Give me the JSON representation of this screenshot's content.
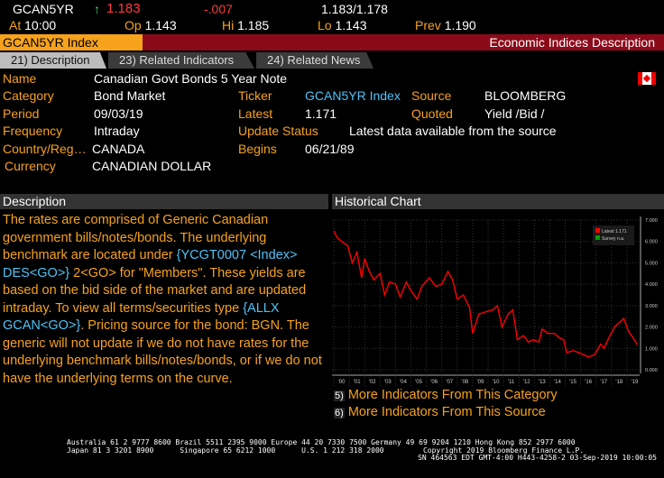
{
  "ticker_bar": {
    "symbol": "GCAN5YR",
    "last": "1.183",
    "change": "-.007",
    "bid_ask": "1.183/1.178",
    "at_label": "At",
    "at": "10:00",
    "op_label": "Op",
    "op": "1.143",
    "hi_label": "Hi",
    "hi": "1.185",
    "lo_label": "Lo",
    "lo": "1.143",
    "prev_label": "Prev",
    "prev": "1.190"
  },
  "header": {
    "security": "GCAN5YR Index",
    "title": "Economic Indices Description"
  },
  "tabs": [
    {
      "label": "21) Description"
    },
    {
      "label": "23) Related Indicators"
    },
    {
      "label": "24) Related News"
    }
  ],
  "fields": {
    "name_label": "Name",
    "name": "Canadian Govt Bonds 5 Year Note",
    "category_label": "Category",
    "category": "Bond Market",
    "ticker_label": "Ticker",
    "ticker": "GCAN5YR Index",
    "source_label": "Source",
    "source": "BLOOMBERG",
    "period_label": "Period",
    "period": "09/03/19",
    "latest_label": "Latest",
    "latest": "1.171",
    "quoted_label": "Quoted",
    "quoted": "Yield /Bid /",
    "frequency_label": "Frequency",
    "frequency": "Intraday",
    "update_status_label": "Update Status",
    "update_status": "Latest data available from the source",
    "country_label": "Country/Reg…",
    "country": "CANADA",
    "begins_label": "Begins",
    "begins": "06/21/89",
    "currency_label": "Currency",
    "currency": "CANADIAN DOLLAR"
  },
  "description": {
    "heading": "Description",
    "t1": "The rates are comprised of Generic Canadian government bills/notes/bonds.  The underlying benchmark are located under ",
    "c1": "{YCGT0007 <Index> DES<GO>}",
    "t2": " 2<GO> for \"Members\".  These yields are based on the bid side of the market and are updated intraday.  To view all terms/securities type ",
    "c2": "{ALLX GCAN<GO>}",
    "t3": ".  Pricing source for the bond: BGN.  The generic will not update if we do not have rates for the underlying benchmark bills/notes/bonds, or if we do not have the underlying terms on the curve."
  },
  "chart_heading": "Historical Chart",
  "links": [
    {
      "num": "5)",
      "label": "More Indicators From This Category"
    },
    {
      "num": "6)",
      "label": "More Indicators From This Source"
    }
  ],
  "footer": {
    "line1": "Australia 61 2 9777 8600 Brazil 5511 2395 9000 Europe 44 20 7330 7500 Germany 49 69 9204 1210 Hong Kong 852 2977 6000",
    "line2": "Japan 81 3 3201 8900      Singapore 65 6212 1000      U.S. 1 212 318 2000         Copyright 2019 Bloomberg Finance L.P.",
    "line3": "SN 464563 EDT  GMT-4:00 H443-4258-2 03-Sep-2019 10:00:05"
  },
  "colors": {
    "accent": "#f7a21b",
    "header": "#8b0a1a",
    "series": "#ff0000"
  },
  "chart_data": {
    "type": "line",
    "title": "",
    "ylim": [
      0,
      7
    ],
    "yticks": [
      "7.000",
      "6.000",
      "5.000",
      "4.000",
      "3.000",
      "2.000",
      "1.000",
      "0.000"
    ],
    "xticks": [
      "'00",
      "'01",
      "'02",
      "'03",
      "'04",
      "'05",
      "'06",
      "'07",
      "'08",
      "'09",
      "'10",
      "'11",
      "'12",
      "'13",
      "'14",
      "'15",
      "'16",
      "'17",
      "'18",
      "'19"
    ],
    "legend": [
      {
        "label": "Latest  1.171",
        "color": "#ff0000"
      },
      {
        "label": "Survey  n.a.",
        "color": "#00a000"
      }
    ],
    "legend_position": "top-right",
    "x": [
      2000.0,
      2000.2,
      2000.5,
      2000.9,
      2001.2,
      2001.5,
      2001.8,
      2002.0,
      2002.3,
      2002.6,
      2003.0,
      2003.3,
      2003.6,
      2004.0,
      2004.3,
      2004.7,
      2005.0,
      2005.4,
      2005.7,
      2006.2,
      2006.6,
      2007.0,
      2007.4,
      2007.7,
      2008.0,
      2008.4,
      2008.8,
      2009.0,
      2009.4,
      2009.8,
      2010.3,
      2010.6,
      2010.9,
      2011.3,
      2011.6,
      2011.9,
      2012.3,
      2012.6,
      2012.9,
      2013.3,
      2013.5,
      2013.9,
      2014.3,
      2014.6,
      2014.9,
      2015.1,
      2015.5,
      2015.9,
      2016.2,
      2016.5,
      2016.9,
      2017.3,
      2017.5,
      2017.9,
      2018.2,
      2018.5,
      2018.8,
      2019.1,
      2019.4,
      2019.67
    ],
    "values": [
      6.5,
      6.2,
      6.0,
      5.8,
      5.0,
      5.5,
      4.3,
      5.2,
      4.6,
      4.2,
      4.5,
      3.5,
      4.1,
      4.0,
      3.4,
      4.1,
      3.7,
      3.3,
      3.9,
      4.3,
      3.9,
      4.0,
      4.6,
      4.2,
      3.3,
      3.5,
      2.9,
      1.7,
      2.6,
      2.7,
      2.8,
      3.0,
      2.0,
      2.6,
      2.8,
      1.4,
      1.6,
      1.3,
      1.4,
      1.3,
      1.9,
      1.7,
      1.7,
      1.5,
      1.4,
      0.8,
      0.9,
      0.8,
      0.7,
      0.6,
      0.7,
      1.2,
      1.0,
      1.6,
      2.0,
      2.2,
      2.4,
      1.8,
      1.5,
      1.17
    ]
  }
}
